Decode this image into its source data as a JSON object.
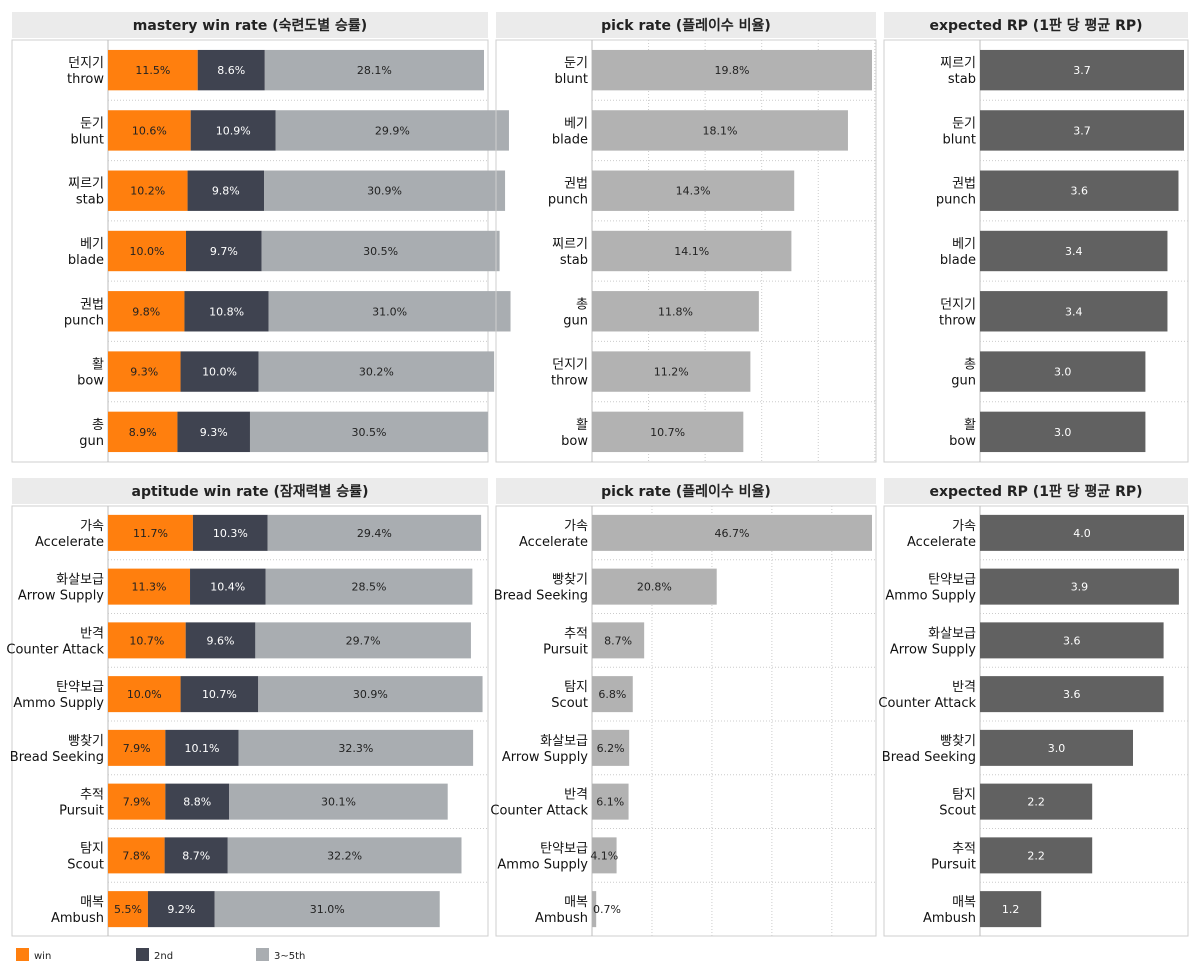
{
  "colors": {
    "win": "#ff7f0e",
    "second": "#3f4350",
    "third": "#a9adb1",
    "pick": "#b2b2b2",
    "rp": "#616161"
  },
  "legend": [
    {
      "key": "win",
      "label": "win"
    },
    {
      "key": "second",
      "label": "2nd"
    },
    {
      "key": "third",
      "label": "3~5th"
    }
  ],
  "chart_data": [
    {
      "type": "bar",
      "stacked": true,
      "title": "mastery win rate (숙련도별 승률)",
      "categories": [
        [
          "던지기",
          "throw"
        ],
        [
          "둔기",
          "blunt"
        ],
        [
          "찌르기",
          "stab"
        ],
        [
          "베기",
          "blade"
        ],
        [
          "권법",
          "punch"
        ],
        [
          "활",
          "bow"
        ],
        [
          "총",
          "gun"
        ]
      ],
      "series": [
        {
          "name": "win",
          "values": [
            11.5,
            10.6,
            10.2,
            10.0,
            9.8,
            9.3,
            8.9
          ]
        },
        {
          "name": "2nd",
          "values": [
            8.6,
            10.9,
            9.8,
            9.7,
            10.8,
            10.0,
            9.3
          ]
        },
        {
          "name": "3~5th",
          "values": [
            28.1,
            29.9,
            30.9,
            30.5,
            31.0,
            30.2,
            30.5
          ]
        }
      ],
      "grid": false
    },
    {
      "type": "bar",
      "title": "pick rate (플레이수 비율)",
      "categories": [
        [
          "둔기",
          "blunt"
        ],
        [
          "베기",
          "blade"
        ],
        [
          "권법",
          "punch"
        ],
        [
          "찌르기",
          "stab"
        ],
        [
          "총",
          "gun"
        ],
        [
          "던지기",
          "throw"
        ],
        [
          "활",
          "bow"
        ]
      ],
      "values": [
        19.8,
        18.1,
        14.3,
        14.1,
        11.8,
        11.2,
        10.7
      ],
      "unit": "%",
      "grid": true
    },
    {
      "type": "bar",
      "title": "expected RP (1판 당 평균 RP)",
      "categories": [
        [
          "찌르기",
          "stab"
        ],
        [
          "둔기",
          "blunt"
        ],
        [
          "권법",
          "punch"
        ],
        [
          "베기",
          "blade"
        ],
        [
          "던지기",
          "throw"
        ],
        [
          "총",
          "gun"
        ],
        [
          "활",
          "bow"
        ]
      ],
      "values": [
        3.7,
        3.7,
        3.6,
        3.4,
        3.4,
        3.0,
        3.0
      ],
      "grid": false
    },
    {
      "type": "bar",
      "stacked": true,
      "title": "aptitude win rate (잠재력별 승률)",
      "categories": [
        [
          "가속",
          "Accelerate"
        ],
        [
          "화살보급",
          "Arrow Supply"
        ],
        [
          "반격",
          "Counter Attack"
        ],
        [
          "탄약보급",
          "Ammo Supply"
        ],
        [
          "빵찾기",
          "Bread Seeking"
        ],
        [
          "추적",
          "Pursuit"
        ],
        [
          "탐지",
          "Scout"
        ],
        [
          "매복",
          "Ambush"
        ]
      ],
      "series": [
        {
          "name": "win",
          "values": [
            11.7,
            11.3,
            10.7,
            10.0,
            7.9,
            7.9,
            7.8,
            5.5
          ]
        },
        {
          "name": "2nd",
          "values": [
            10.3,
            10.4,
            9.6,
            10.7,
            10.1,
            8.8,
            8.7,
            9.2
          ]
        },
        {
          "name": "3~5th",
          "values": [
            29.4,
            28.5,
            29.7,
            30.9,
            32.3,
            30.1,
            32.2,
            31.0
          ]
        }
      ],
      "grid": false
    },
    {
      "type": "bar",
      "title": "pick rate (플레이수 비율)",
      "categories": [
        [
          "가속",
          "Accelerate"
        ],
        [
          "빵찾기",
          "Bread Seeking"
        ],
        [
          "추적",
          "Pursuit"
        ],
        [
          "탐지",
          "Scout"
        ],
        [
          "화살보급",
          "Arrow Supply"
        ],
        [
          "반격",
          "Counter Attack"
        ],
        [
          "탄약보급",
          "Ammo Supply"
        ],
        [
          "매복",
          "Ambush"
        ]
      ],
      "values": [
        46.7,
        20.8,
        8.7,
        6.8,
        6.2,
        6.1,
        4.1,
        0.7
      ],
      "unit": "%",
      "grid": true
    },
    {
      "type": "bar",
      "title": "expected RP (1판 당 평균 RP)",
      "categories": [
        [
          "가속",
          "Accelerate"
        ],
        [
          "탄약보급",
          "Ammo Supply"
        ],
        [
          "화살보급",
          "Arrow Supply"
        ],
        [
          "반격",
          "Counter Attack"
        ],
        [
          "빵찾기",
          "Bread Seeking"
        ],
        [
          "탐지",
          "Scout"
        ],
        [
          "추적",
          "Pursuit"
        ],
        [
          "매복",
          "Ambush"
        ]
      ],
      "values": [
        4.0,
        3.9,
        3.6,
        3.6,
        3.0,
        2.2,
        2.2,
        1.2
      ],
      "grid": false
    }
  ]
}
